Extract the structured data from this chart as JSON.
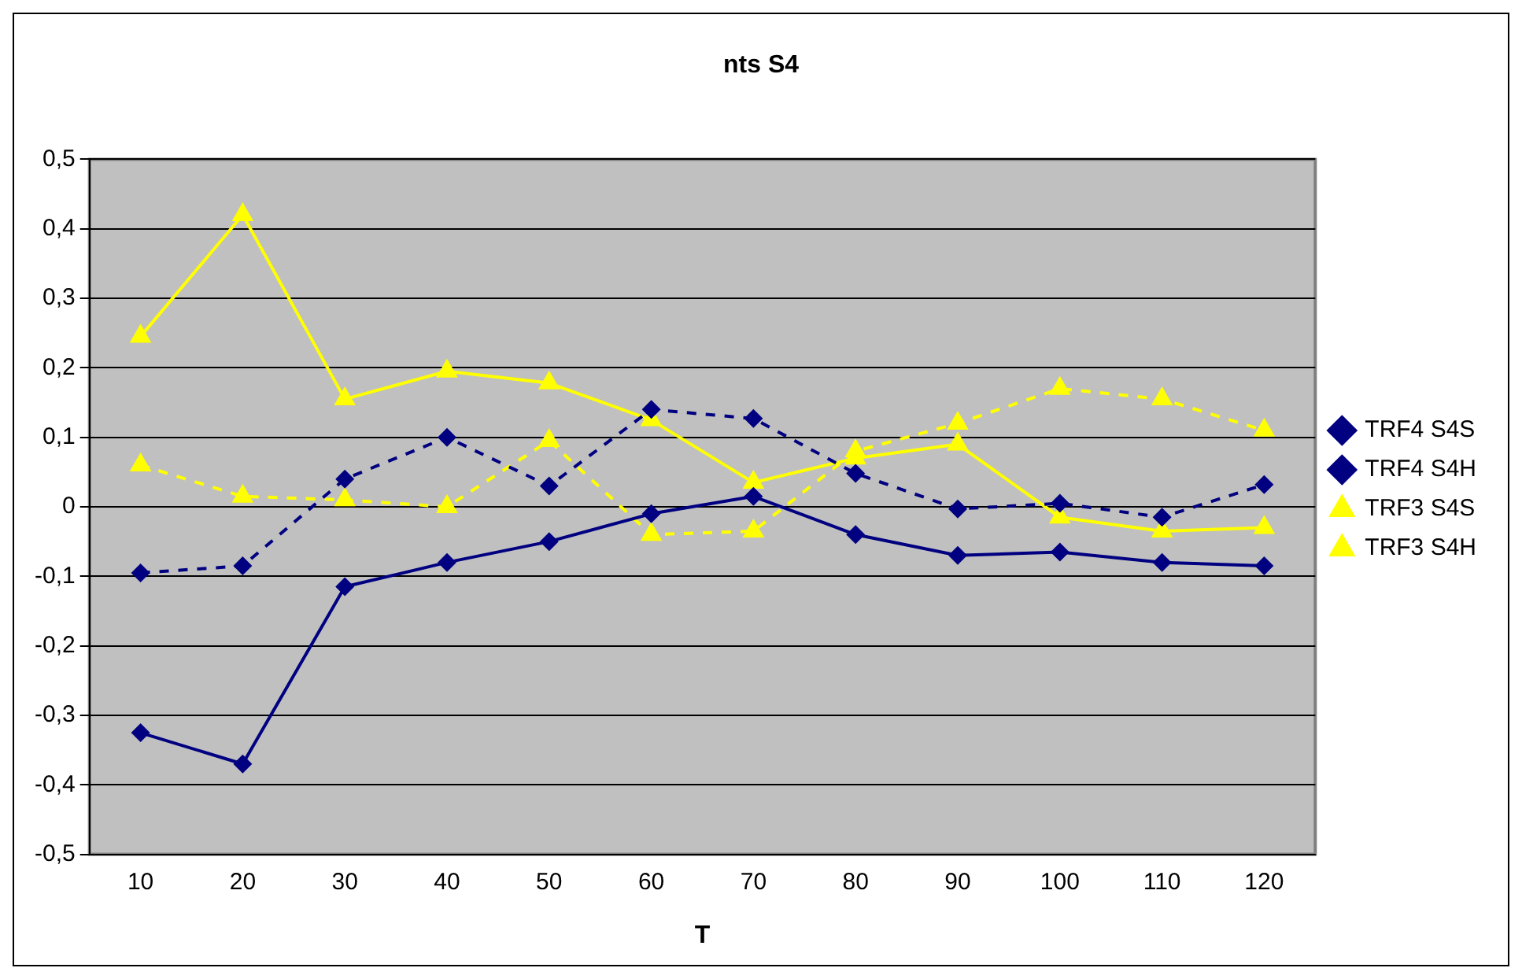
{
  "chart_data": {
    "type": "line",
    "title": "nts S4",
    "xlabel": "T",
    "categories": [
      "10",
      "20",
      "30",
      "40",
      "50",
      "60",
      "70",
      "80",
      "90",
      "100",
      "110",
      "120"
    ],
    "series": [
      {
        "name": "TRF4 S4S",
        "color": "#000080",
        "marker": "diamond",
        "line_style": "solid",
        "values": [
          -0.325,
          -0.37,
          -0.115,
          -0.08,
          -0.05,
          -0.01,
          0.015,
          -0.04,
          -0.07,
          -0.065,
          -0.08,
          -0.085
        ]
      },
      {
        "name": "TRF4 S4H",
        "color": "#000080",
        "marker": "diamond",
        "line_style": "dashed",
        "values": [
          -0.095,
          -0.085,
          0.04,
          0.1,
          0.03,
          0.14,
          0.127,
          0.048,
          -0.003,
          0.005,
          -0.015,
          0.032
        ]
      },
      {
        "name": "TRF3 S4S",
        "color": "#ffff00",
        "marker": "triangle",
        "line_style": "solid",
        "values": [
          0.245,
          0.42,
          0.155,
          0.195,
          0.178,
          0.125,
          0.035,
          0.07,
          0.09,
          -0.015,
          -0.035,
          -0.03
        ]
      },
      {
        "name": "TRF3 S4H",
        "color": "#ffff00",
        "marker": "triangle",
        "line_style": "dashed",
        "values": [
          0.06,
          0.015,
          0.01,
          0.0,
          0.095,
          -0.04,
          -0.035,
          0.08,
          0.12,
          0.17,
          0.155,
          0.11
        ]
      }
    ],
    "ylim": [
      -0.5,
      0.5
    ],
    "yticks": [
      {
        "value": -0.5,
        "label": "-0,5"
      },
      {
        "value": -0.4,
        "label": "-0,4"
      },
      {
        "value": -0.3,
        "label": "-0,3"
      },
      {
        "value": -0.2,
        "label": "-0,2"
      },
      {
        "value": -0.1,
        "label": "-0,1"
      },
      {
        "value": 0,
        "label": "0"
      },
      {
        "value": 0.1,
        "label": "0,1"
      },
      {
        "value": 0.2,
        "label": "0,2"
      },
      {
        "value": 0.3,
        "label": "0,3"
      },
      {
        "value": 0.4,
        "label": "0,4"
      },
      {
        "value": 0.5,
        "label": "0,5"
      }
    ],
    "grid": "y",
    "legend": "right"
  }
}
